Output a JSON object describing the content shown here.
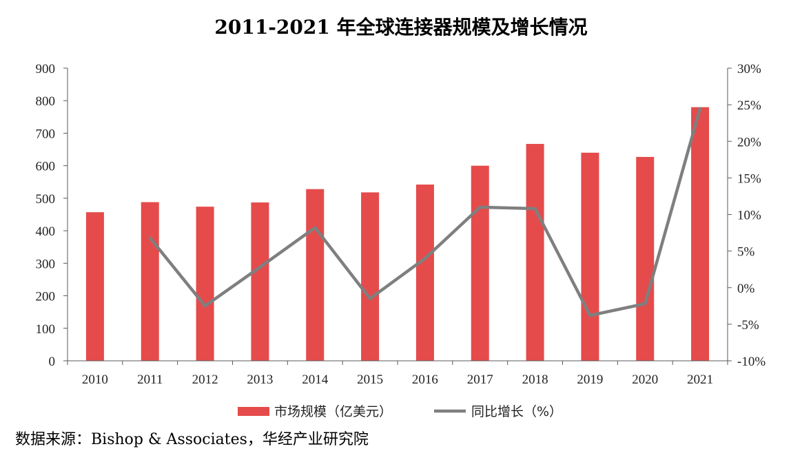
{
  "title": "2011-2021 年全球连接器规模及增长情况",
  "source": "数据来源：Bishop & Associates，华经产业研究院",
  "colors": {
    "bar": "#E54B4B",
    "line": "#7F7F7F",
    "axis": "#595959"
  },
  "chart_data": {
    "type": "bar+line",
    "categories": [
      "2010",
      "2011",
      "2012",
      "2013",
      "2014",
      "2015",
      "2016",
      "2017",
      "2018",
      "2019",
      "2020",
      "2021"
    ],
    "series": [
      {
        "name": "市场规模（亿美元）",
        "type": "bar",
        "axis": "left",
        "values": [
          457,
          488,
          474,
          487,
          528,
          518,
          542,
          600,
          667,
          640,
          627,
          780
        ]
      },
      {
        "name": "同比增长（%）",
        "type": "line",
        "axis": "right",
        "values": [
          null,
          6.8,
          -2.5,
          2.8,
          8.2,
          -1.5,
          4.0,
          11.0,
          10.8,
          -3.8,
          -2.2,
          24.5
        ]
      }
    ],
    "y_left": {
      "ylim": [
        0,
        900
      ],
      "ticks": [
        "0",
        "100",
        "200",
        "300",
        "400",
        "500",
        "600",
        "700",
        "800",
        "900"
      ]
    },
    "y_right": {
      "ylim": [
        -10,
        30
      ],
      "ticks": [
        "-10%",
        "-5%",
        "0%",
        "5%",
        "10%",
        "15%",
        "20%",
        "25%",
        "30%"
      ]
    },
    "grid": false,
    "legend_position": "bottom"
  }
}
